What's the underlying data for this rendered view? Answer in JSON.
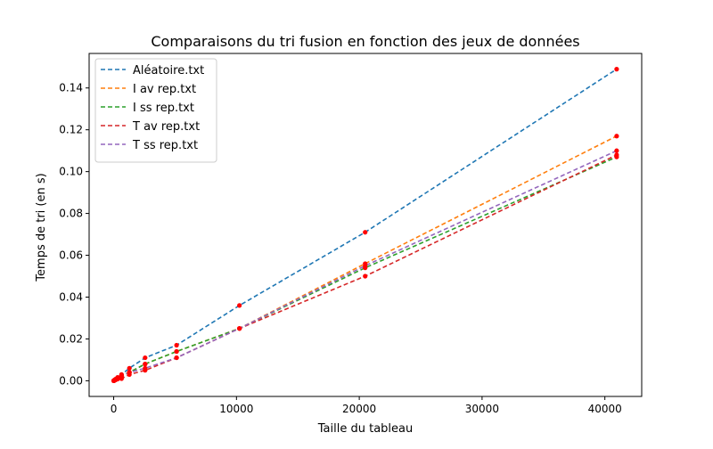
{
  "chart_data": {
    "type": "line",
    "title": "Comparaisons du tri fusion en fonction des jeux de données",
    "xlabel": "Taille du tableau",
    "ylabel": "Temps de tri (en s)",
    "xlim": [
      -2000,
      43000
    ],
    "ylim": [
      -0.0075,
      0.1565
    ],
    "xticks": [
      0,
      10000,
      20000,
      30000,
      40000
    ],
    "xtick_labels": [
      "0",
      "10000",
      "20000",
      "30000",
      "40000"
    ],
    "yticks": [
      0,
      0.02,
      0.04,
      0.06,
      0.08,
      0.1,
      0.12,
      0.14
    ],
    "ytick_labels": [
      "0.00",
      "0.02",
      "0.04",
      "0.06",
      "0.08",
      "0.10",
      "0.12",
      "0.14"
    ],
    "grid": false,
    "legend_position": "top-left",
    "marker_color": "#ff0000",
    "x": [
      10,
      20,
      40,
      80,
      160,
      320,
      640,
      1280,
      2560,
      5120,
      10240,
      20480,
      40960
    ],
    "series": [
      {
        "name": "Aléatoire.txt",
        "color": "#1f77b4",
        "values": [
          0.0,
          0.0001,
          0.0002,
          0.0004,
          0.0008,
          0.0016,
          0.003,
          0.006,
          0.011,
          0.017,
          0.036,
          0.071,
          0.149
        ]
      },
      {
        "name": "I av rep.txt",
        "color": "#ff7f0e",
        "values": [
          0.0,
          0.0001,
          0.0002,
          0.0003,
          0.0006,
          0.0012,
          0.0024,
          0.004,
          0.008,
          0.014,
          0.025,
          0.056,
          0.117
        ]
      },
      {
        "name": "I ss rep.txt",
        "color": "#2ca02c",
        "values": [
          0.0,
          0.0001,
          0.0002,
          0.0003,
          0.0006,
          0.0012,
          0.0025,
          0.004,
          0.008,
          0.014,
          0.025,
          0.054,
          0.107
        ]
      },
      {
        "name": "T av rep.txt",
        "color": "#d62728",
        "values": [
          0.0,
          0.0001,
          0.0001,
          0.0002,
          0.0004,
          0.0008,
          0.001,
          0.003,
          0.005,
          0.011,
          0.025,
          0.05,
          0.108
        ]
      },
      {
        "name": "T ss rep.txt",
        "color": "#9467bd",
        "values": [
          0.0,
          0.0001,
          0.0002,
          0.0003,
          0.0006,
          0.0012,
          0.0022,
          0.004,
          0.006,
          0.011,
          0.025,
          0.055,
          0.11
        ]
      }
    ]
  }
}
